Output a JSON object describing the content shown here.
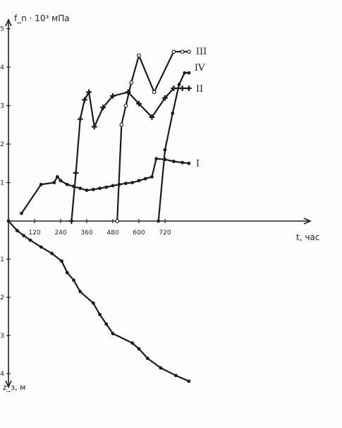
{
  "chart_data": {
    "type": "line",
    "ylabel_top": "f_n · 10³ мПа",
    "xlabel": "t, час",
    "ylabel_bottom": "z_з, м",
    "x_ticks": [
      120,
      240,
      360,
      480,
      600,
      720
    ],
    "y_top_ticks": [
      1,
      2,
      3,
      4,
      5
    ],
    "y_bottom_ticks": [
      1,
      2,
      3,
      4
    ],
    "xlim": [
      0,
      840
    ],
    "ylim_top": [
      0,
      5.6
    ],
    "ylim_bottom": [
      0,
      4.2
    ],
    "series": [
      {
        "name": "I",
        "axis": "top",
        "marker": "dot",
        "points": [
          [
            60,
            0.2
          ],
          [
            150,
            0.95
          ],
          [
            210,
            1.0
          ],
          [
            225,
            1.15
          ],
          [
            240,
            1.05
          ],
          [
            270,
            0.95
          ],
          [
            300,
            0.9
          ],
          [
            330,
            0.85
          ],
          [
            360,
            0.8
          ],
          [
            390,
            0.82
          ],
          [
            420,
            0.85
          ],
          [
            450,
            0.88
          ],
          [
            480,
            0.92
          ],
          [
            510,
            0.95
          ],
          [
            540,
            0.98
          ],
          [
            570,
            1.0
          ],
          [
            600,
            1.05
          ],
          [
            630,
            1.1
          ],
          [
            660,
            1.15
          ],
          [
            680,
            1.62
          ],
          [
            720,
            1.6
          ],
          [
            760,
            1.55
          ],
          [
            800,
            1.52
          ],
          [
            830,
            1.5
          ]
        ]
      },
      {
        "name": "II",
        "axis": "top",
        "marker": "tick",
        "points": [
          [
            290,
            0
          ],
          [
            310,
            1.25
          ],
          [
            330,
            2.65
          ],
          [
            350,
            3.15
          ],
          [
            370,
            3.35
          ],
          [
            395,
            2.45
          ],
          [
            435,
            2.95
          ],
          [
            480,
            3.25
          ],
          [
            550,
            3.35
          ],
          [
            600,
            3.05
          ],
          [
            660,
            2.7
          ],
          [
            720,
            3.2
          ],
          [
            760,
            3.45
          ],
          [
            800,
            3.45
          ],
          [
            830,
            3.45
          ]
        ]
      },
      {
        "name": "III",
        "axis": "top",
        "marker": "circle",
        "points": [
          [
            500,
            0
          ],
          [
            520,
            2.5
          ],
          [
            540,
            3.0
          ],
          [
            565,
            3.6
          ],
          [
            600,
            4.3
          ],
          [
            670,
            3.35
          ],
          [
            760,
            4.4
          ],
          [
            800,
            4.4
          ],
          [
            830,
            4.4
          ]
        ]
      },
      {
        "name": "IV",
        "axis": "top",
        "marker": "dot",
        "points": [
          [
            690,
            0
          ],
          [
            720,
            1.85
          ],
          [
            755,
            2.8
          ],
          [
            785,
            3.55
          ],
          [
            810,
            3.85
          ],
          [
            830,
            3.85
          ]
        ]
      },
      {
        "name": "",
        "axis": "bottom",
        "marker": "dot",
        "points": [
          [
            0,
            0
          ],
          [
            40,
            0.25
          ],
          [
            70,
            0.38
          ],
          [
            100,
            0.5
          ],
          [
            150,
            0.68
          ],
          [
            200,
            0.85
          ],
          [
            245,
            1.05
          ],
          [
            270,
            1.35
          ],
          [
            300,
            1.55
          ],
          [
            330,
            1.85
          ],
          [
            390,
            2.15
          ],
          [
            420,
            2.45
          ],
          [
            450,
            2.7
          ],
          [
            480,
            2.95
          ],
          [
            570,
            3.2
          ],
          [
            600,
            3.35
          ],
          [
            640,
            3.6
          ],
          [
            700,
            3.85
          ],
          [
            770,
            4.05
          ],
          [
            830,
            4.2
          ]
        ]
      }
    ]
  }
}
